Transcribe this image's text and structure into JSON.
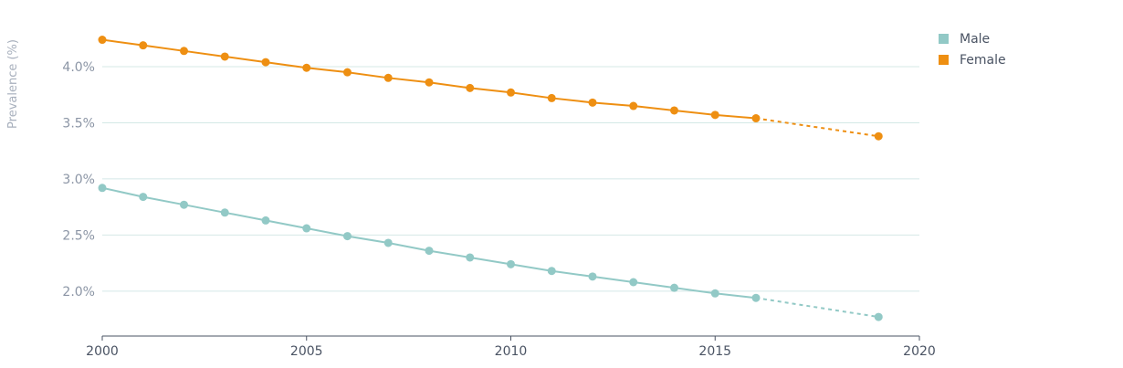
{
  "chart_data": {
    "type": "line",
    "title": "",
    "xlabel": "",
    "ylabel": "Prevalence (%)",
    "xlim": [
      2000,
      2020
    ],
    "ylim": [
      1.6,
      4.35
    ],
    "y_ticks": [
      2.0,
      2.5,
      3.0,
      3.5,
      4.0
    ],
    "y_tick_labels": [
      "2.0%",
      "2.5%",
      "3.0%",
      "3.5%",
      "4.0%"
    ],
    "x_ticks": [
      2000,
      2005,
      2010,
      2015,
      2020
    ],
    "x_tick_labels": [
      "2000",
      "2005",
      "2010",
      "2015",
      "2020"
    ],
    "grid": "horizontal",
    "legend_position": "top-right",
    "x": [
      2000,
      2001,
      2002,
      2003,
      2004,
      2005,
      2006,
      2007,
      2008,
      2009,
      2010,
      2011,
      2012,
      2013,
      2014,
      2015,
      2016
    ],
    "projection_x": 2019,
    "series": [
      {
        "name": "Male",
        "color": "#92c9c6",
        "values": [
          2.92,
          2.84,
          2.77,
          2.7,
          2.63,
          2.56,
          2.49,
          2.43,
          2.36,
          2.3,
          2.24,
          2.18,
          2.13,
          2.08,
          2.03,
          1.98,
          1.94
        ],
        "projection": 1.77
      },
      {
        "name": "Female",
        "color": "#ee8f12",
        "values": [
          4.24,
          4.19,
          4.14,
          4.09,
          4.04,
          3.99,
          3.95,
          3.9,
          3.86,
          3.81,
          3.77,
          3.72,
          3.68,
          3.65,
          3.61,
          3.57,
          3.54
        ],
        "projection": 3.38
      }
    ]
  }
}
